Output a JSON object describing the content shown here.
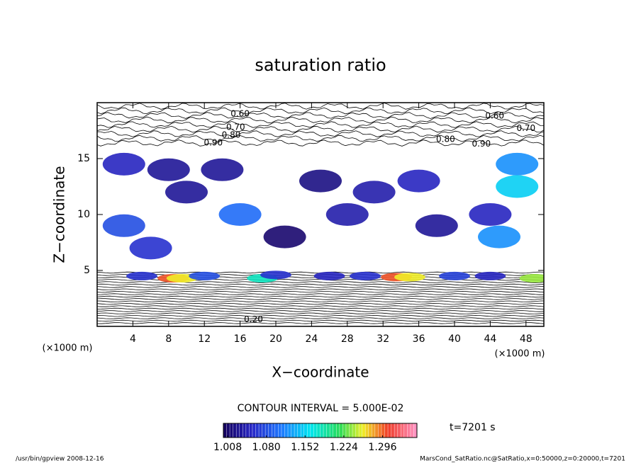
{
  "chart_data": {
    "type": "contour",
    "title": "saturation ratio",
    "x_label": "X−coordinate",
    "y_label": "Z−coordinate",
    "x_unit": "(×1000 m)",
    "x_unit_right": "(×1000 m)",
    "xlim": [
      0,
      50
    ],
    "ylim": [
      0,
      20
    ],
    "xticks": [
      4,
      8,
      12,
      16,
      20,
      24,
      28,
      32,
      36,
      40,
      44,
      48
    ],
    "yticks": [
      5,
      10,
      15
    ],
    "shaded": {
      "x": [
        8.5,
        9.5,
        33.5,
        35,
        49,
        18.5,
        5,
        12,
        20,
        26,
        30,
        40,
        44,
        3,
        8,
        47,
        47,
        45,
        44,
        10,
        28,
        21,
        38,
        3,
        16,
        25,
        31,
        14,
        36,
        6
      ],
      "y": [
        4.3,
        4.3,
        4.4,
        4.4,
        4.3,
        4.3,
        4.5,
        4.5,
        4.6,
        4.5,
        4.5,
        4.5,
        4.5,
        14.5,
        14,
        14.5,
        12.5,
        8,
        10,
        12,
        10,
        8,
        9,
        9,
        10,
        13,
        12,
        14,
        13,
        7
      ],
      "values": [
        1.3,
        1.26,
        1.3,
        1.26,
        1.24,
        1.18,
        1.06,
        1.08,
        1.06,
        1.05,
        1.06,
        1.07,
        1.05,
        1.05,
        1.03,
        1.12,
        1.15,
        1.12,
        1.05,
        1.03,
        1.04,
        1.01,
        1.03,
        1.08,
        1.1,
        1.02,
        1.04,
        1.03,
        1.05,
        1.06
      ]
    },
    "annotations": [
      {
        "text": "0.60",
        "x": 16,
        "y": 19
      },
      {
        "text": "0.70",
        "x": 15.5,
        "y": 17.8
      },
      {
        "text": "0.80",
        "x": 15,
        "y": 17.1
      },
      {
        "text": "0.90",
        "x": 13,
        "y": 16.4
      },
      {
        "text": "0.60",
        "x": 44.5,
        "y": 18.8
      },
      {
        "text": "0.70",
        "x": 48,
        "y": 17.7
      },
      {
        "text": "0.80",
        "x": 39,
        "y": 16.7
      },
      {
        "text": "0.90",
        "x": 43,
        "y": 16.3
      },
      {
        "text": "0.20",
        "x": 17.5,
        "y": 0.6
      }
    ],
    "contour_interval": "CONTOUR INTERVAL = 5.000E-02",
    "colorbar": {
      "lim": [
        1.0,
        1.36
      ],
      "ticks": [
        1.008,
        {
          "value": 1.08,
          "label": "1.080"
        },
        1.152,
        1.224,
        1.296
      ]
    },
    "time_label": "t=7201 s",
    "footer_left": "/usr/bin/gpview   2008-12-16",
    "footer_right": "MarsCond_SatRatio.nc@SatRatio,x=0:50000,z=0:20000,t=7201"
  }
}
